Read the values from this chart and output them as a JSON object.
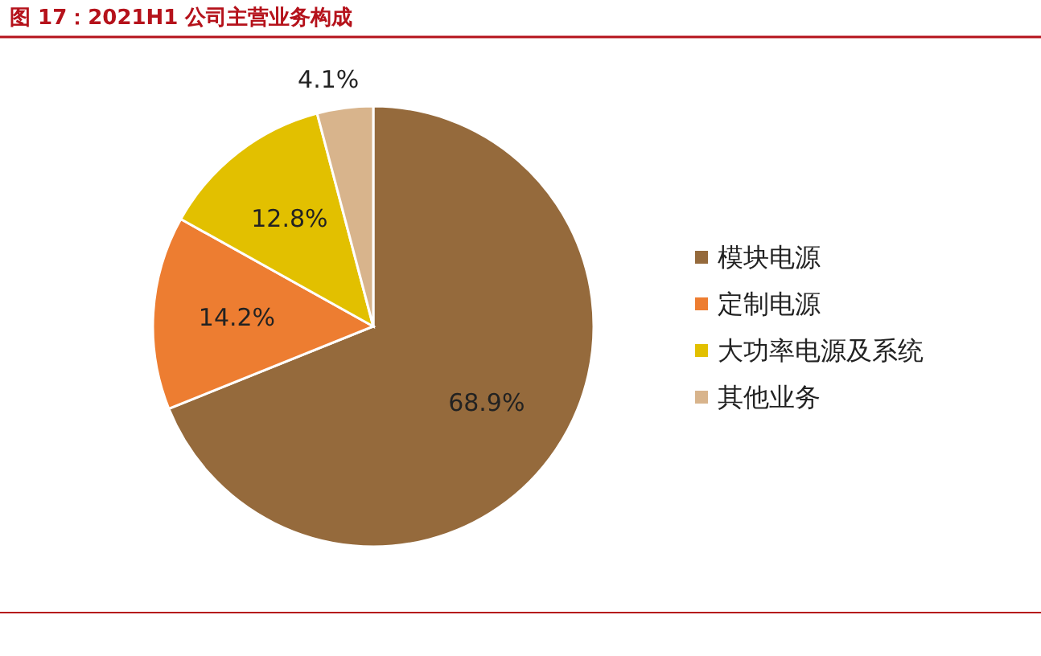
{
  "chart_data": {
    "type": "pie",
    "title": "图 17：2021H1 公司主营业务构成",
    "categories": [
      "模块电源",
      "定制电源",
      "大功率电源及系统",
      "其他业务"
    ],
    "values": [
      68.9,
      14.2,
      12.8,
      4.1
    ],
    "colors": [
      "#956a3c",
      "#ed7d31",
      "#e2c000",
      "#d8b48c"
    ],
    "value_labels": [
      "68.9%",
      "14.2%",
      "12.8%",
      "4.1%"
    ],
    "legend": "right"
  }
}
